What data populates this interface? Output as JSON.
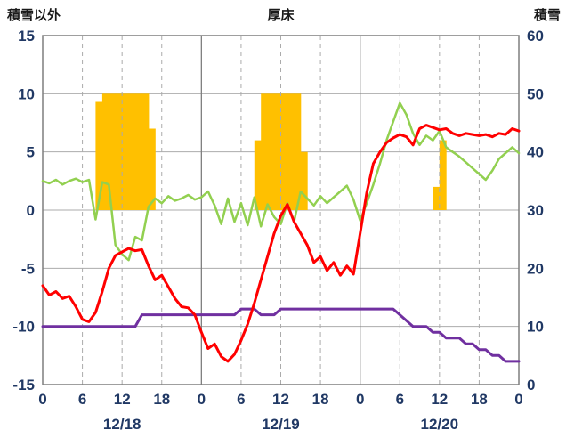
{
  "chart_data": {
    "type": "line+bar",
    "title": "厚床",
    "left_axis_title": "積雪以外",
    "right_axis_title": "積雪",
    "left_axis_ticks": [
      15,
      10,
      5,
      0,
      -5,
      -10,
      -15
    ],
    "right_axis_ticks": [
      60,
      50,
      40,
      30,
      20,
      10,
      0
    ],
    "left_ylim": [
      -15,
      15
    ],
    "right_ylim": [
      0,
      60
    ],
    "x_hours": 72,
    "x_tick_interval": 6,
    "x_tick_labels": [
      "0",
      "6",
      "12",
      "18",
      "0",
      "6",
      "12",
      "18",
      "0",
      "6",
      "12",
      "18",
      "0"
    ],
    "date_labels": [
      "12/18",
      "12/19",
      "12/20"
    ],
    "grid": true,
    "legend": "none",
    "colors": {
      "bars": "#FFC000",
      "red": "#FF0000",
      "green": "#92D050",
      "purple": "#7030A0",
      "grid": "#ABABAB",
      "border": "#7F7F7F",
      "axis_text": "#203864"
    },
    "bars": {
      "name": "orange-bars",
      "axis": "left",
      "values": [
        0,
        0,
        0,
        0,
        0,
        0,
        0,
        0,
        9.3,
        10,
        10,
        10,
        10,
        10,
        10,
        10,
        7,
        0,
        0,
        0,
        0,
        0,
        0,
        0,
        0,
        0,
        0,
        0,
        0,
        0,
        0,
        0,
        6,
        10,
        10,
        10,
        10,
        10,
        10,
        5,
        0,
        0,
        0,
        0,
        0,
        0,
        0,
        0,
        0,
        0,
        0,
        0,
        0,
        0,
        0,
        0,
        0,
        0,
        0,
        2,
        6,
        0,
        0,
        0,
        0,
        0,
        0,
        0,
        0,
        0,
        0,
        0
      ]
    },
    "series": [
      {
        "name": "purple-line",
        "axis": "right",
        "color_key": "purple",
        "stroke_width": 3,
        "values": [
          10,
          10,
          10,
          10,
          10,
          10,
          10,
          10,
          10,
          10,
          10,
          10,
          10,
          10,
          10,
          12,
          12,
          12,
          12,
          12,
          12,
          12,
          12,
          12,
          12,
          12,
          12,
          12,
          12,
          12,
          13,
          13,
          13,
          12,
          12,
          12,
          13,
          13,
          13,
          13,
          13,
          13,
          13,
          13,
          13,
          13,
          13,
          13,
          13,
          13,
          13,
          13,
          13,
          13,
          12,
          11,
          10,
          10,
          10,
          9,
          9,
          8,
          8,
          8,
          7,
          7,
          6,
          6,
          5,
          5,
          4,
          4,
          4
        ]
      },
      {
        "name": "green-line",
        "axis": "left",
        "color_key": "green",
        "stroke_width": 2.5,
        "values": [
          2.5,
          2.3,
          2.6,
          2.2,
          2.5,
          2.7,
          2.4,
          2.6,
          -0.8,
          2.4,
          2.2,
          -3.0,
          -3.8,
          -4.3,
          -2.3,
          -2.6,
          0.3,
          1.0,
          0.6,
          1.2,
          0.8,
          1.0,
          1.3,
          0.9,
          1.1,
          1.6,
          0.4,
          -1.2,
          1.0,
          -1.0,
          0.6,
          -1.3,
          1.1,
          -1.4,
          0.5,
          -0.6,
          -1.2,
          0.6,
          -1.0,
          1.6,
          1.0,
          0.4,
          1.2,
          0.6,
          1.1,
          1.6,
          2.1,
          0.9,
          -0.9,
          0.6,
          2.2,
          4.0,
          6.0,
          7.6,
          9.2,
          8.2,
          6.6,
          5.6,
          6.4,
          6.0,
          6.8,
          5.4,
          5.0,
          4.6,
          4.1,
          3.6,
          3.1,
          2.6,
          3.4,
          4.4,
          4.9,
          5.4,
          4.9
        ]
      },
      {
        "name": "red-line",
        "axis": "left",
        "color_key": "red",
        "stroke_width": 3,
        "values": [
          -6.5,
          -7.3,
          -7.0,
          -7.6,
          -7.4,
          -8.3,
          -9.4,
          -9.6,
          -8.8,
          -7.0,
          -5.0,
          -3.9,
          -3.6,
          -3.3,
          -3.5,
          -3.4,
          -4.8,
          -6.0,
          -5.6,
          -6.6,
          -7.6,
          -8.3,
          -8.4,
          -9.0,
          -10.5,
          -11.9,
          -11.5,
          -12.6,
          -13.0,
          -12.4,
          -11.2,
          -9.8,
          -8.0,
          -6.0,
          -4.0,
          -2.0,
          -0.5,
          0.5,
          -1.0,
          -2.0,
          -3.0,
          -4.5,
          -4.0,
          -5.2,
          -4.5,
          -5.6,
          -4.8,
          -5.5,
          -2.0,
          1.5,
          4.0,
          5.0,
          5.8,
          6.2,
          6.5,
          6.3,
          5.6,
          7.0,
          7.3,
          7.1,
          6.9,
          7.0,
          6.6,
          6.4,
          6.6,
          6.5,
          6.4,
          6.5,
          6.3,
          6.6,
          6.5,
          7.0,
          6.8
        ]
      }
    ]
  }
}
